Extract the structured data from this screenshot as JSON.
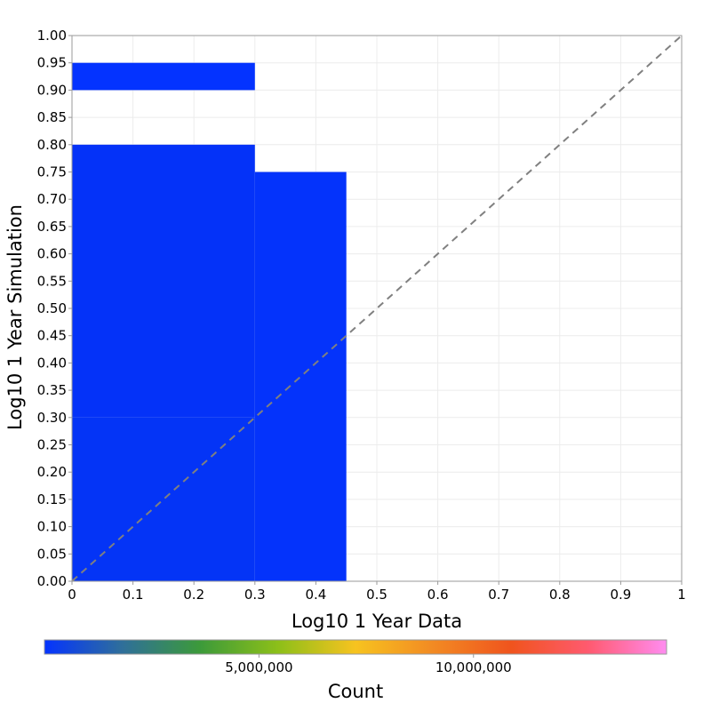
{
  "chart_data": {
    "type": "heatmap",
    "xlabel": "Log10 1 Year Data",
    "ylabel": "Log10 1 Year Simulation",
    "xlim": [
      0,
      1
    ],
    "ylim": [
      0,
      1
    ],
    "x_ticks": [
      "0",
      "0.1",
      "0.2",
      "0.3",
      "0.4",
      "0.5",
      "0.6",
      "0.7",
      "0.8",
      "0.9",
      "1"
    ],
    "y_ticks": [
      "0.00",
      "0.05",
      "0.10",
      "0.15",
      "0.20",
      "0.25",
      "0.30",
      "0.35",
      "0.40",
      "0.45",
      "0.50",
      "0.55",
      "0.60",
      "0.65",
      "0.70",
      "0.75",
      "0.80",
      "0.85",
      "0.90",
      "0.95",
      "1.00"
    ],
    "grid": true,
    "diagonal_reference_line": true,
    "bins": [
      {
        "x": [
          0,
          0.3
        ],
        "y": [
          0.9,
          0.95
        ],
        "color": "#0433ff"
      },
      {
        "x": [
          0,
          0.3
        ],
        "y": [
          0.3,
          0.8
        ],
        "color": "#0432f8"
      },
      {
        "x": [
          0,
          0.3
        ],
        "y": [
          0,
          0.3
        ],
        "color": "#0434f6"
      },
      {
        "x": [
          0.3,
          0.45
        ],
        "y": [
          0,
          0.75
        ],
        "color": "#0433fb"
      }
    ],
    "colorbar": {
      "label": "Count",
      "ticks": [
        "5,000,000",
        "10,000,000"
      ],
      "tick_values": [
        5000000,
        10000000
      ],
      "range": [
        0,
        14500000
      ],
      "gradient": [
        "#0433ff",
        "#2f6f9a",
        "#3c9a3a",
        "#8cbf19",
        "#f7c31f",
        "#f28a23",
        "#f0541d",
        "#ff5a70",
        "#ff8cf0"
      ]
    }
  }
}
